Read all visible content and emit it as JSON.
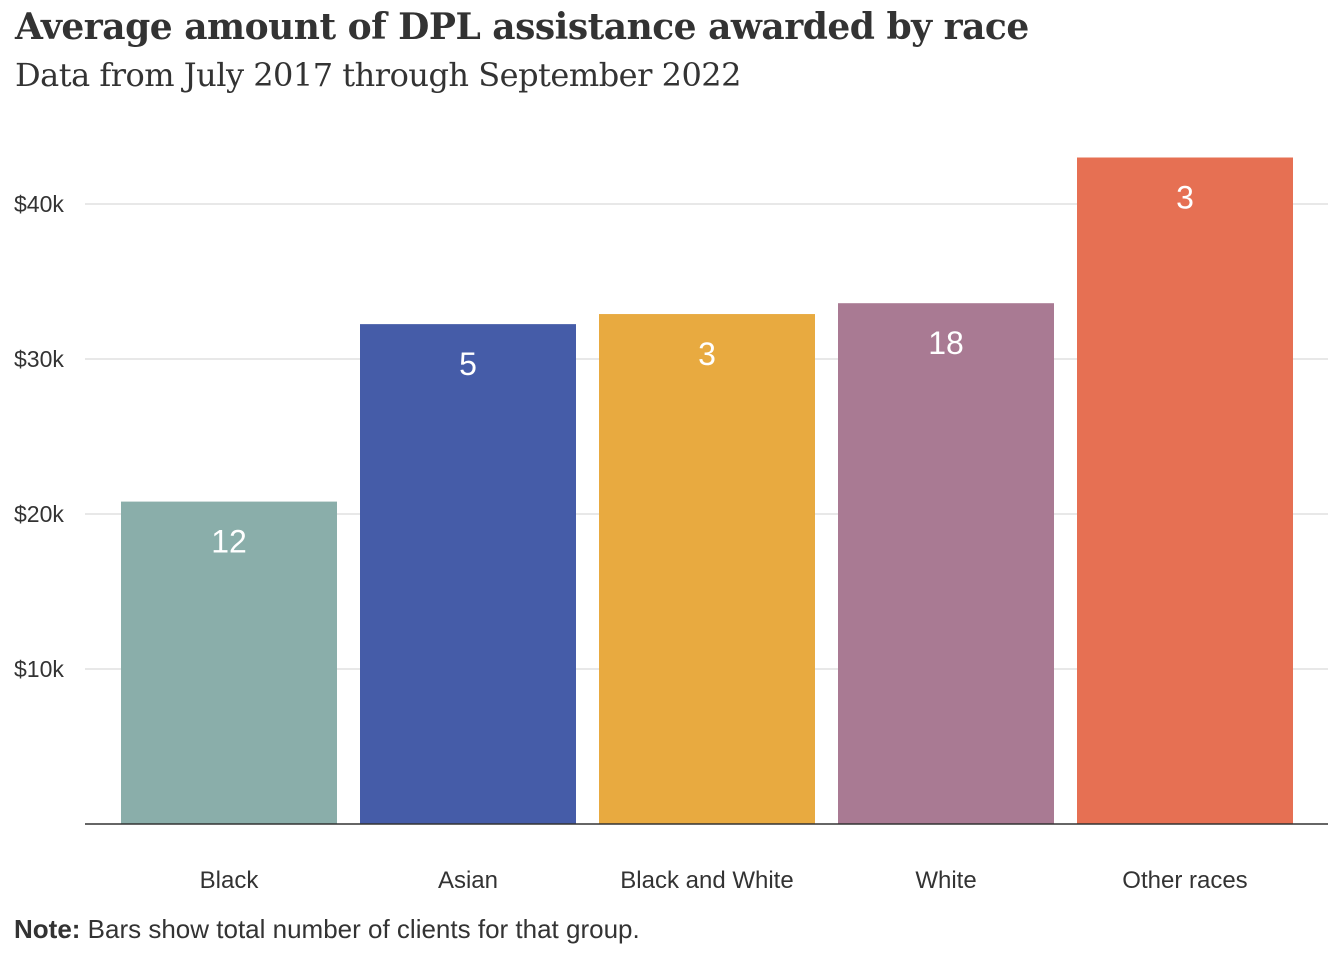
{
  "chart_data": {
    "type": "bar",
    "title": "Average amount of DPL assistance awarded by race",
    "subtitle": "Data from July 2017 through September 2022",
    "categories": [
      "Black",
      "Asian",
      "Black and White",
      "White",
      "Other races"
    ],
    "values": [
      20800,
      32250,
      32900,
      33600,
      43000
    ],
    "data_labels": [
      "12",
      "5",
      "3",
      "18",
      "3"
    ],
    "colors": [
      "#8aaeaa",
      "#455ca8",
      "#e8aa40",
      "#a97a93",
      "#e67053"
    ],
    "y_ticks": [
      10000,
      20000,
      30000,
      40000
    ],
    "y_tick_labels": [
      "$10k",
      "$20k",
      "$30k",
      "$40k"
    ],
    "ylim": [
      0,
      43000
    ],
    "grid": true,
    "xlabel": "",
    "ylabel": "",
    "note_label": "Note:",
    "note_text": " Bars show total number of clients for that group."
  }
}
